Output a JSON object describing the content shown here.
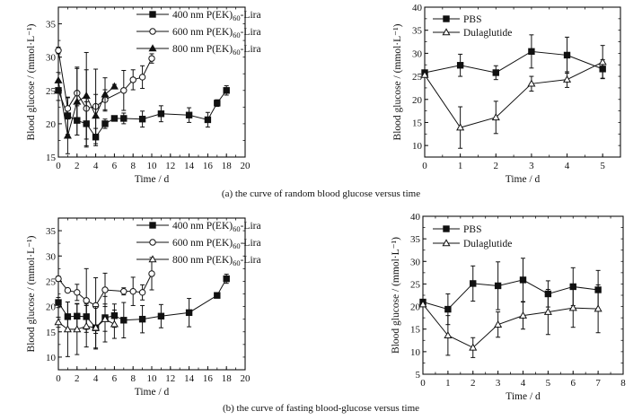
{
  "captions": {
    "a": "(a) the curve of random blood glucose versus time",
    "b": "(b) the curve of fasting blood-glucose versus time"
  },
  "chart_data": [
    {
      "id": "a-left",
      "type": "line",
      "title": "",
      "xlabel": "Time / d",
      "ylabel": "Blood glucose / (mmol·L⁻¹)",
      "xlim": [
        0,
        20
      ],
      "ylim": [
        15,
        37.5
      ],
      "xticks": [
        0,
        2,
        4,
        6,
        8,
        10,
        12,
        14,
        16,
        18,
        20
      ],
      "yticks": [
        15,
        20,
        25,
        30,
        35
      ],
      "legend_position": "top-right",
      "series": [
        {
          "name": "400 nm P(EK)60-Lira",
          "name_main": "400 nm P(EK)",
          "name_sub": "60",
          "name_tail": "-Lira",
          "marker": "square-filled",
          "x": [
            0,
            1,
            2,
            3,
            4,
            5,
            6,
            7,
            9,
            11,
            14,
            16,
            17,
            18
          ],
          "y": [
            25.0,
            21.2,
            20.5,
            20.0,
            18.0,
            20.0,
            20.8,
            20.8,
            20.7,
            21.5,
            21.3,
            20.6,
            23.1,
            25.0
          ],
          "err": [
            1.5,
            2.8,
            2.2,
            3.3,
            1.3,
            0.7,
            0.3,
            0.8,
            1.2,
            1.2,
            1.1,
            1.1,
            0.5,
            0.7
          ]
        },
        {
          "name": "600 nm P(EK)60-Lira",
          "name_main": "600 nm P(EK)",
          "name_sub": "60",
          "name_tail": "-Lira",
          "marker": "circle-open",
          "x": [
            0,
            1,
            2,
            3,
            4,
            5,
            7,
            8,
            9,
            10
          ],
          "y": [
            31.0,
            22.3,
            24.6,
            22.3,
            22.6,
            23.6,
            25.0,
            26.6,
            27.0,
            29.8
          ],
          "err": [
            0.5,
            1.6,
            3.9,
            5.8,
            5.6,
            1.5,
            3.0,
            1.5,
            1.7,
            0.7
          ]
        },
        {
          "name": "800 nm P(EK)60-Lira",
          "name_main": "800 nm P(EK)",
          "name_sub": "60",
          "name_tail": "-Lira",
          "marker": "triangle-filled",
          "x": [
            0,
            1,
            2,
            3,
            4,
            5,
            6
          ],
          "y": [
            26.5,
            18.2,
            23.3,
            24.2,
            21.2,
            24.4,
            25.6
          ],
          "err": [
            1.2,
            2.7,
            5.0,
            6.5,
            3.2,
            2.5,
            0.3
          ]
        }
      ]
    },
    {
      "id": "a-right",
      "type": "line",
      "title": "",
      "xlabel": "Time / d",
      "ylabel": "Blood glucose / (mmol·L⁻¹)",
      "xlim": [
        0,
        5.5
      ],
      "ylim": [
        7.5,
        40
      ],
      "xticks": [
        0,
        1,
        2,
        3,
        4,
        5
      ],
      "yticks": [
        10,
        15,
        20,
        25,
        30,
        35,
        40
      ],
      "legend_position": "top-left",
      "series": [
        {
          "name": "PBS",
          "name_main": "PBS",
          "name_sub": "",
          "name_tail": "",
          "marker": "square-filled",
          "x": [
            0,
            1,
            2,
            3,
            4,
            5
          ],
          "y": [
            25.8,
            27.4,
            25.8,
            30.4,
            29.6,
            26.6
          ],
          "err": [
            0.3,
            2.4,
            1.5,
            3.6,
            3.9,
            2.0
          ]
        },
        {
          "name": "Dulaglutide",
          "name_main": "Dulaglutide",
          "name_sub": "",
          "name_tail": "",
          "marker": "triangle-open",
          "x": [
            0,
            1,
            2,
            3,
            4,
            5
          ],
          "y": [
            25.3,
            13.9,
            16.1,
            23.4,
            24.3,
            28.1
          ],
          "err": [
            0.3,
            4.5,
            3.5,
            1.6,
            1.7,
            3.6
          ]
        }
      ]
    },
    {
      "id": "b-left",
      "type": "line",
      "title": "",
      "xlabel": "Time / d",
      "ylabel": "Blood glucose / (mmol·L⁻¹)",
      "xlim": [
        0,
        20
      ],
      "ylim": [
        7.5,
        37.5
      ],
      "xticks": [
        0,
        2,
        4,
        6,
        8,
        10,
        12,
        14,
        16,
        18,
        20
      ],
      "yticks": [
        10,
        15,
        20,
        25,
        30,
        35
      ],
      "legend_position": "top-right",
      "series": [
        {
          "name": "400 nm P(EK)60-Lira",
          "name_main": "400 nm P(EK)",
          "name_sub": "60",
          "name_tail": "-Lira",
          "marker": "square-filled",
          "x": [
            0,
            1,
            2,
            3,
            4,
            5,
            6,
            7,
            9,
            11,
            14,
            17,
            18
          ],
          "y": [
            20.8,
            18.0,
            18.1,
            18.0,
            15.8,
            17.8,
            18.2,
            17.3,
            17.5,
            18.1,
            18.8,
            22.2,
            25.5
          ],
          "err": [
            1.0,
            2.9,
            2.5,
            2.5,
            4.0,
            2.7,
            2.3,
            3.5,
            2.7,
            2.3,
            2.8,
            0.5,
            0.9
          ]
        },
        {
          "name": "600 nm P(EK)60-Lira",
          "name_main": "600 nm P(EK)",
          "name_sub": "60",
          "name_tail": "-Lira",
          "marker": "circle-open",
          "x": [
            0,
            1,
            2,
            3,
            4,
            5,
            7,
            8,
            9,
            10
          ],
          "y": [
            25.5,
            23.2,
            22.8,
            21.2,
            20.2,
            23.3,
            23.0,
            23.0,
            22.8,
            26.5
          ],
          "err": [
            0.5,
            0.3,
            1.6,
            6.3,
            5.5,
            3.3,
            0.7,
            2.8,
            1.5,
            3.2
          ]
        },
        {
          "name": "800 nm P(EK)60-Lira",
          "name_main": "800 nm P(EK)",
          "name_sub": "60",
          "name_tail": "-Lira",
          "marker": "triangle-open",
          "x": [
            0,
            1,
            2,
            3,
            4,
            5,
            6
          ],
          "y": [
            16.9,
            15.5,
            15.5,
            16.1,
            15.8,
            17.5,
            16.5
          ],
          "err": [
            1.0,
            5.4,
            5.0,
            4.1,
            4.2,
            4.5,
            2.8
          ]
        }
      ]
    },
    {
      "id": "b-right",
      "type": "line",
      "title": "",
      "xlabel": "Time / d",
      "ylabel": "Blood glucose / (mmol·L⁻¹)",
      "xlim": [
        0,
        8
      ],
      "ylim": [
        5,
        40
      ],
      "xticks": [
        0,
        1,
        2,
        3,
        4,
        5,
        6,
        7,
        8
      ],
      "yticks": [
        5,
        10,
        15,
        20,
        25,
        30,
        35,
        40
      ],
      "legend_position": "top-left",
      "series": [
        {
          "name": "PBS",
          "name_main": "PBS",
          "name_sub": "",
          "name_tail": "",
          "marker": "square-filled",
          "x": [
            0,
            1,
            2,
            3,
            4,
            5,
            6,
            7
          ],
          "y": [
            21.0,
            19.4,
            25.1,
            24.6,
            25.9,
            22.8,
            24.4,
            23.7
          ],
          "err": [
            0.4,
            3.4,
            3.9,
            5.3,
            4.8,
            2.9,
            4.2,
            4.3
          ]
        },
        {
          "name": "Dulaglutide",
          "name_main": "Dulaglutide",
          "name_sub": "",
          "name_tail": "",
          "marker": "triangle-open",
          "x": [
            0,
            1,
            2,
            3,
            4,
            5,
            6,
            7
          ],
          "y": [
            20.5,
            13.6,
            10.9,
            16.0,
            18.0,
            18.8,
            19.7,
            19.5
          ],
          "err": [
            0.4,
            4.4,
            2.2,
            2.8,
            3.0,
            5.0,
            4.3,
            5.3
          ]
        }
      ]
    }
  ]
}
